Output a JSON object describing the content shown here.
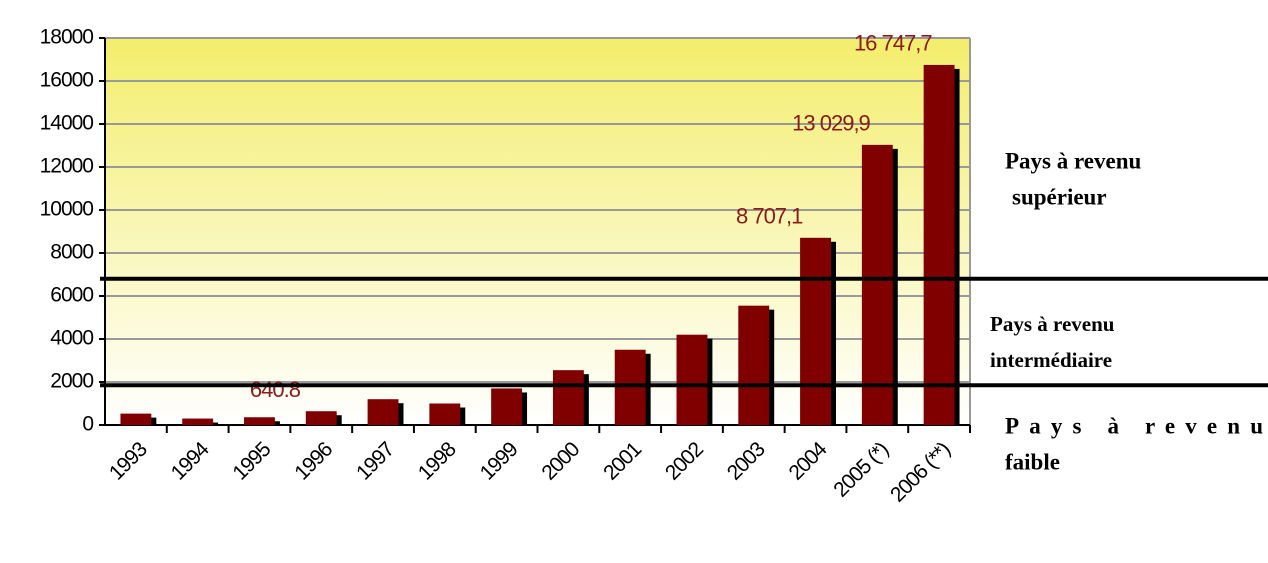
{
  "chart_data": {
    "type": "bar",
    "categories": [
      "1993",
      "1994",
      "1995",
      "1996",
      "1997",
      "1998",
      "1999",
      "2000",
      "2001",
      "2002",
      "2003",
      "2004",
      "2005 (*)",
      "2006 (**)"
    ],
    "values": [
      530,
      300,
      360,
      640.8,
      1200,
      1000,
      1700,
      2550,
      3500,
      4200,
      5550,
      8707.1,
      13029.9,
      16747.7
    ],
    "value_labels": [
      null,
      null,
      null,
      "640.8",
      null,
      null,
      null,
      null,
      null,
      null,
      null,
      "8 707,1",
      "13 029,9",
      "16 747,7"
    ],
    "color": "#800000",
    "ylim": [
      0,
      18000
    ],
    "yticks": [
      0,
      2000,
      4000,
      6000,
      8000,
      10000,
      12000,
      14000,
      16000,
      18000
    ],
    "grid": true,
    "thresholds": [
      {
        "value": 6800,
        "text": [
          "Pays à revenu",
          "supérieur"
        ]
      },
      {
        "value": 1850,
        "text": [
          "Pays à revenu",
          "intermédiaire"
        ]
      },
      {
        "value": 0,
        "text": [
          "Pays à revenu",
          "faible"
        ]
      }
    ]
  }
}
